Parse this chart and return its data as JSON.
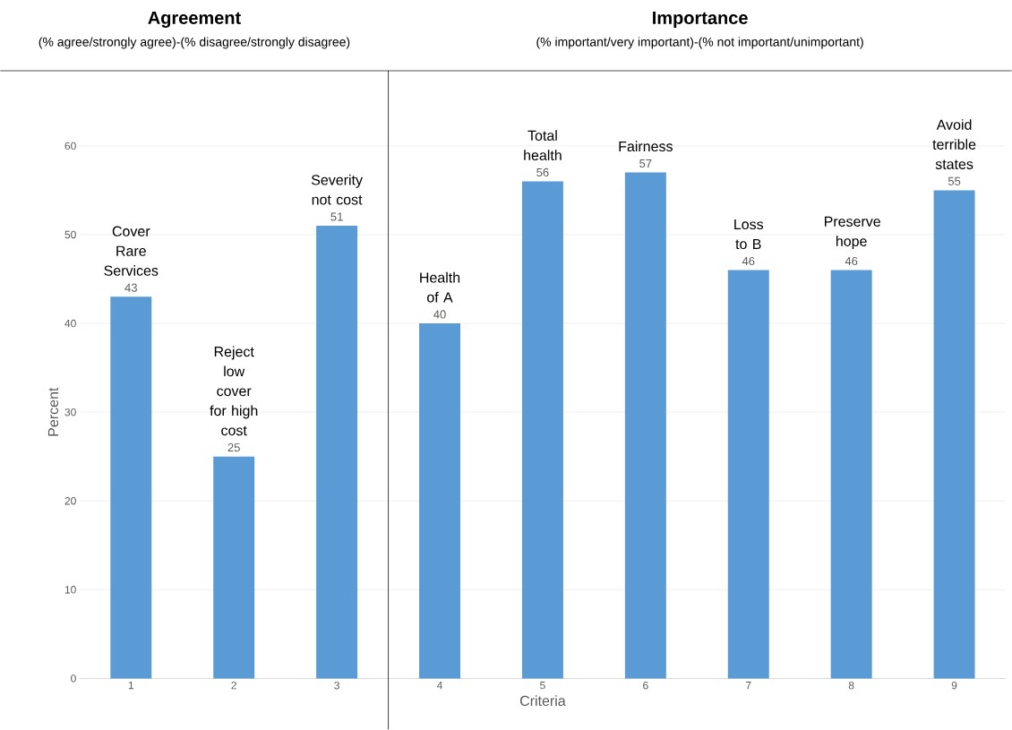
{
  "chart_data": {
    "type": "bar",
    "x": [
      1,
      2,
      3,
      4,
      5,
      6,
      7,
      8,
      9
    ],
    "values": [
      43,
      25,
      51,
      40,
      56,
      57,
      46,
      46,
      55
    ],
    "color": "#5b9bd5",
    "data_labels": true,
    "xlabel": "Criteria",
    "ylabel": "Percent",
    "xlim": [
      0.5,
      9.5
    ],
    "xticks": [
      1,
      2,
      3,
      4,
      5,
      6,
      7,
      8,
      9
    ],
    "ylim": [
      0,
      60
    ],
    "yticks": [
      0,
      10,
      20,
      30,
      40,
      50,
      60
    ],
    "grid": "y",
    "ref_lines": [
      {
        "axis": "x",
        "value": 3.5,
        "color": "#000000"
      }
    ],
    "annotations": [
      "Agreement",
      "(% agree/strongly agree)-(% disagree/strongly disagree)",
      "Importance",
      "(% important/very important)-(% not important/unimportant)",
      {
        "text": "Cover Rare Services",
        "x": 1,
        "y": 43
      },
      {
        "text": "Reject low cover for high cost",
        "x": 2,
        "y": 25
      },
      {
        "text": "Severity not cost",
        "x": 3,
        "y": 51
      },
      {
        "text": "Health of A",
        "x": 4,
        "y": 40
      },
      {
        "text": "Total health",
        "x": 5,
        "y": 56
      },
      {
        "text": "Fairness",
        "x": 6,
        "y": 57
      },
      {
        "text": "Loss to B",
        "x": 7,
        "y": 46
      },
      {
        "text": "Preserve hope",
        "x": 8,
        "y": 46
      },
      {
        "text": "Avoid terrible states",
        "x": 9,
        "y": 55
      }
    ]
  }
}
